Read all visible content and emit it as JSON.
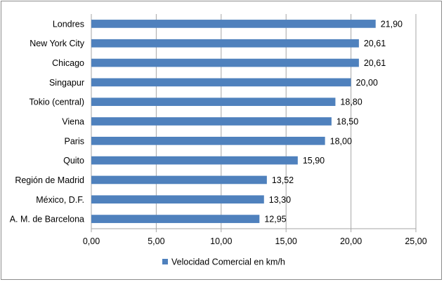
{
  "chart_data": {
    "type": "bar",
    "orientation": "horizontal",
    "categories": [
      "Londres",
      "New York City",
      "Chicago",
      "Singapur",
      "Tokio (central)",
      "Viena",
      "Paris",
      "Quito",
      "Región de Madrid",
      "México, D.F.",
      "A. M. de Barcelona"
    ],
    "series": [
      {
        "name": "Velocidad Comercial en km/h",
        "values": [
          21.9,
          20.61,
          20.61,
          20.0,
          18.8,
          18.5,
          18.0,
          15.9,
          13.52,
          13.3,
          12.95
        ],
        "labels": [
          "21,90",
          "20,61",
          "20,61",
          "20,00",
          "18,80",
          "18,50",
          "18,00",
          "15,90",
          "13,52",
          "13,30",
          "12,95"
        ],
        "color": "#4f81bd"
      }
    ],
    "xlim": [
      0,
      25
    ],
    "xticks": [
      0,
      5,
      10,
      15,
      20,
      25
    ],
    "xtick_labels": [
      "0,00",
      "5,00",
      "10,00",
      "15,00",
      "20,00",
      "25,00"
    ],
    "grid": true,
    "legend_position": "bottom"
  },
  "colors": {
    "bar": "#4f81bd",
    "grid": "#a6a6a6",
    "frame": "#8c8c8c"
  }
}
